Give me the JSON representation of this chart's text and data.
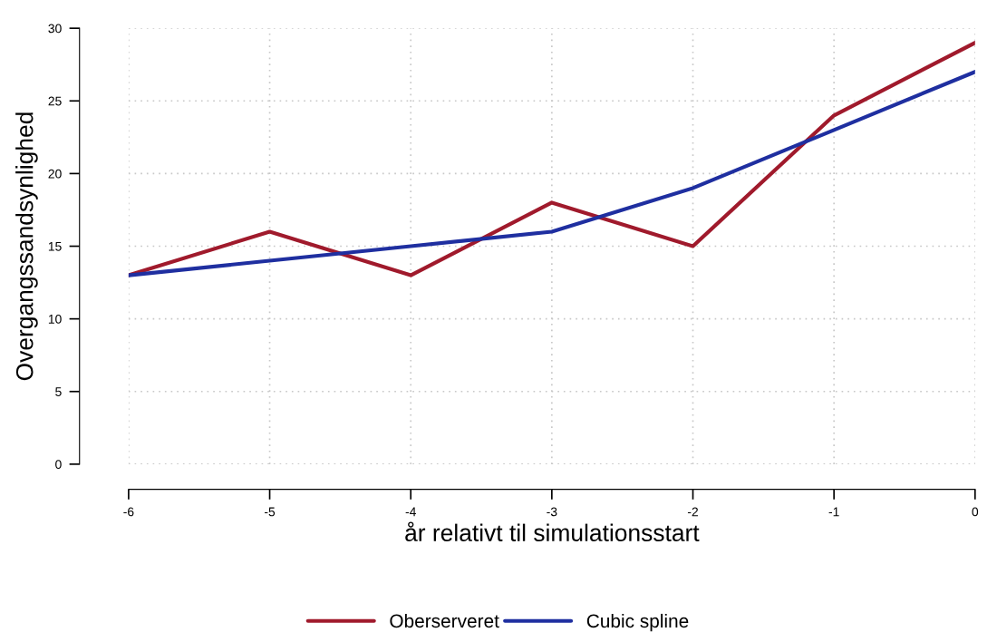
{
  "chart_data": {
    "type": "line",
    "xlabel": "år relativt til simulationsstart",
    "ylabel": "Overgangssandsynlighed",
    "x": [
      -6,
      -5,
      -4,
      -3,
      -2,
      -1,
      0
    ],
    "series": [
      {
        "name": "Oberserveret",
        "color": "#a01a2c",
        "values": [
          13,
          16,
          13,
          18,
          15,
          24,
          29
        ]
      },
      {
        "name": "Cubic spline",
        "color": "#1f2fa0",
        "values": [
          13,
          14,
          15,
          16,
          19,
          23,
          27
        ]
      }
    ],
    "xlim": [
      -6,
      0
    ],
    "xticks": [
      -6,
      -5,
      -4,
      -3,
      -2,
      -1,
      0
    ],
    "ylim": [
      0,
      30
    ],
    "yticks": [
      0,
      5,
      10,
      15,
      20,
      25,
      30
    ],
    "grid": true,
    "legend": "bottom",
    "line_style": "solid",
    "marker": "none"
  }
}
